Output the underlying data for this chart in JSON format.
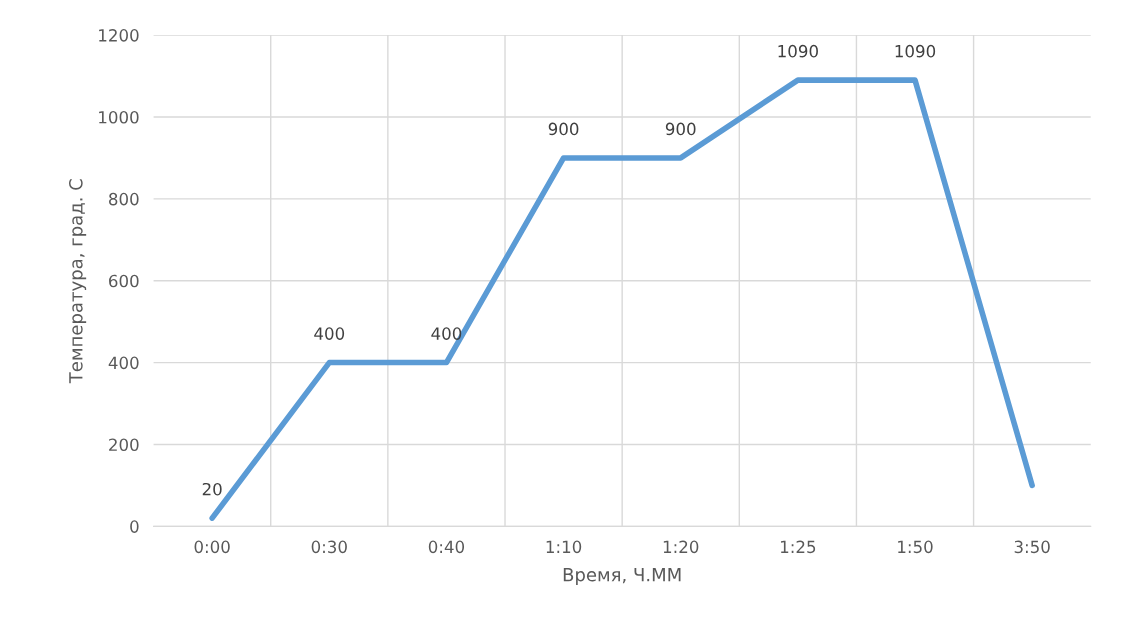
{
  "chart_data": {
    "type": "line",
    "xlabel": "Время, Ч.ММ",
    "ylabel": "Температура, град. С",
    "categories": [
      "0:00",
      "0:30",
      "0:40",
      "1:10",
      "1:20",
      "1:25",
      "1:50",
      "3:50"
    ],
    "series": [
      {
        "color": "#5b9bd5",
        "values": [
          20,
          400,
          400,
          900,
          900,
          1090,
          1090,
          100
        ],
        "value_labels": [
          "20",
          "400",
          "400",
          "900",
          "900",
          "1090",
          "1090",
          null
        ]
      }
    ],
    "ylim": [
      0,
      1200
    ],
    "yticks": [
      0,
      200,
      400,
      600,
      800,
      1000,
      1200
    ],
    "grid": true,
    "marker": "none",
    "line_style": "solid"
  }
}
